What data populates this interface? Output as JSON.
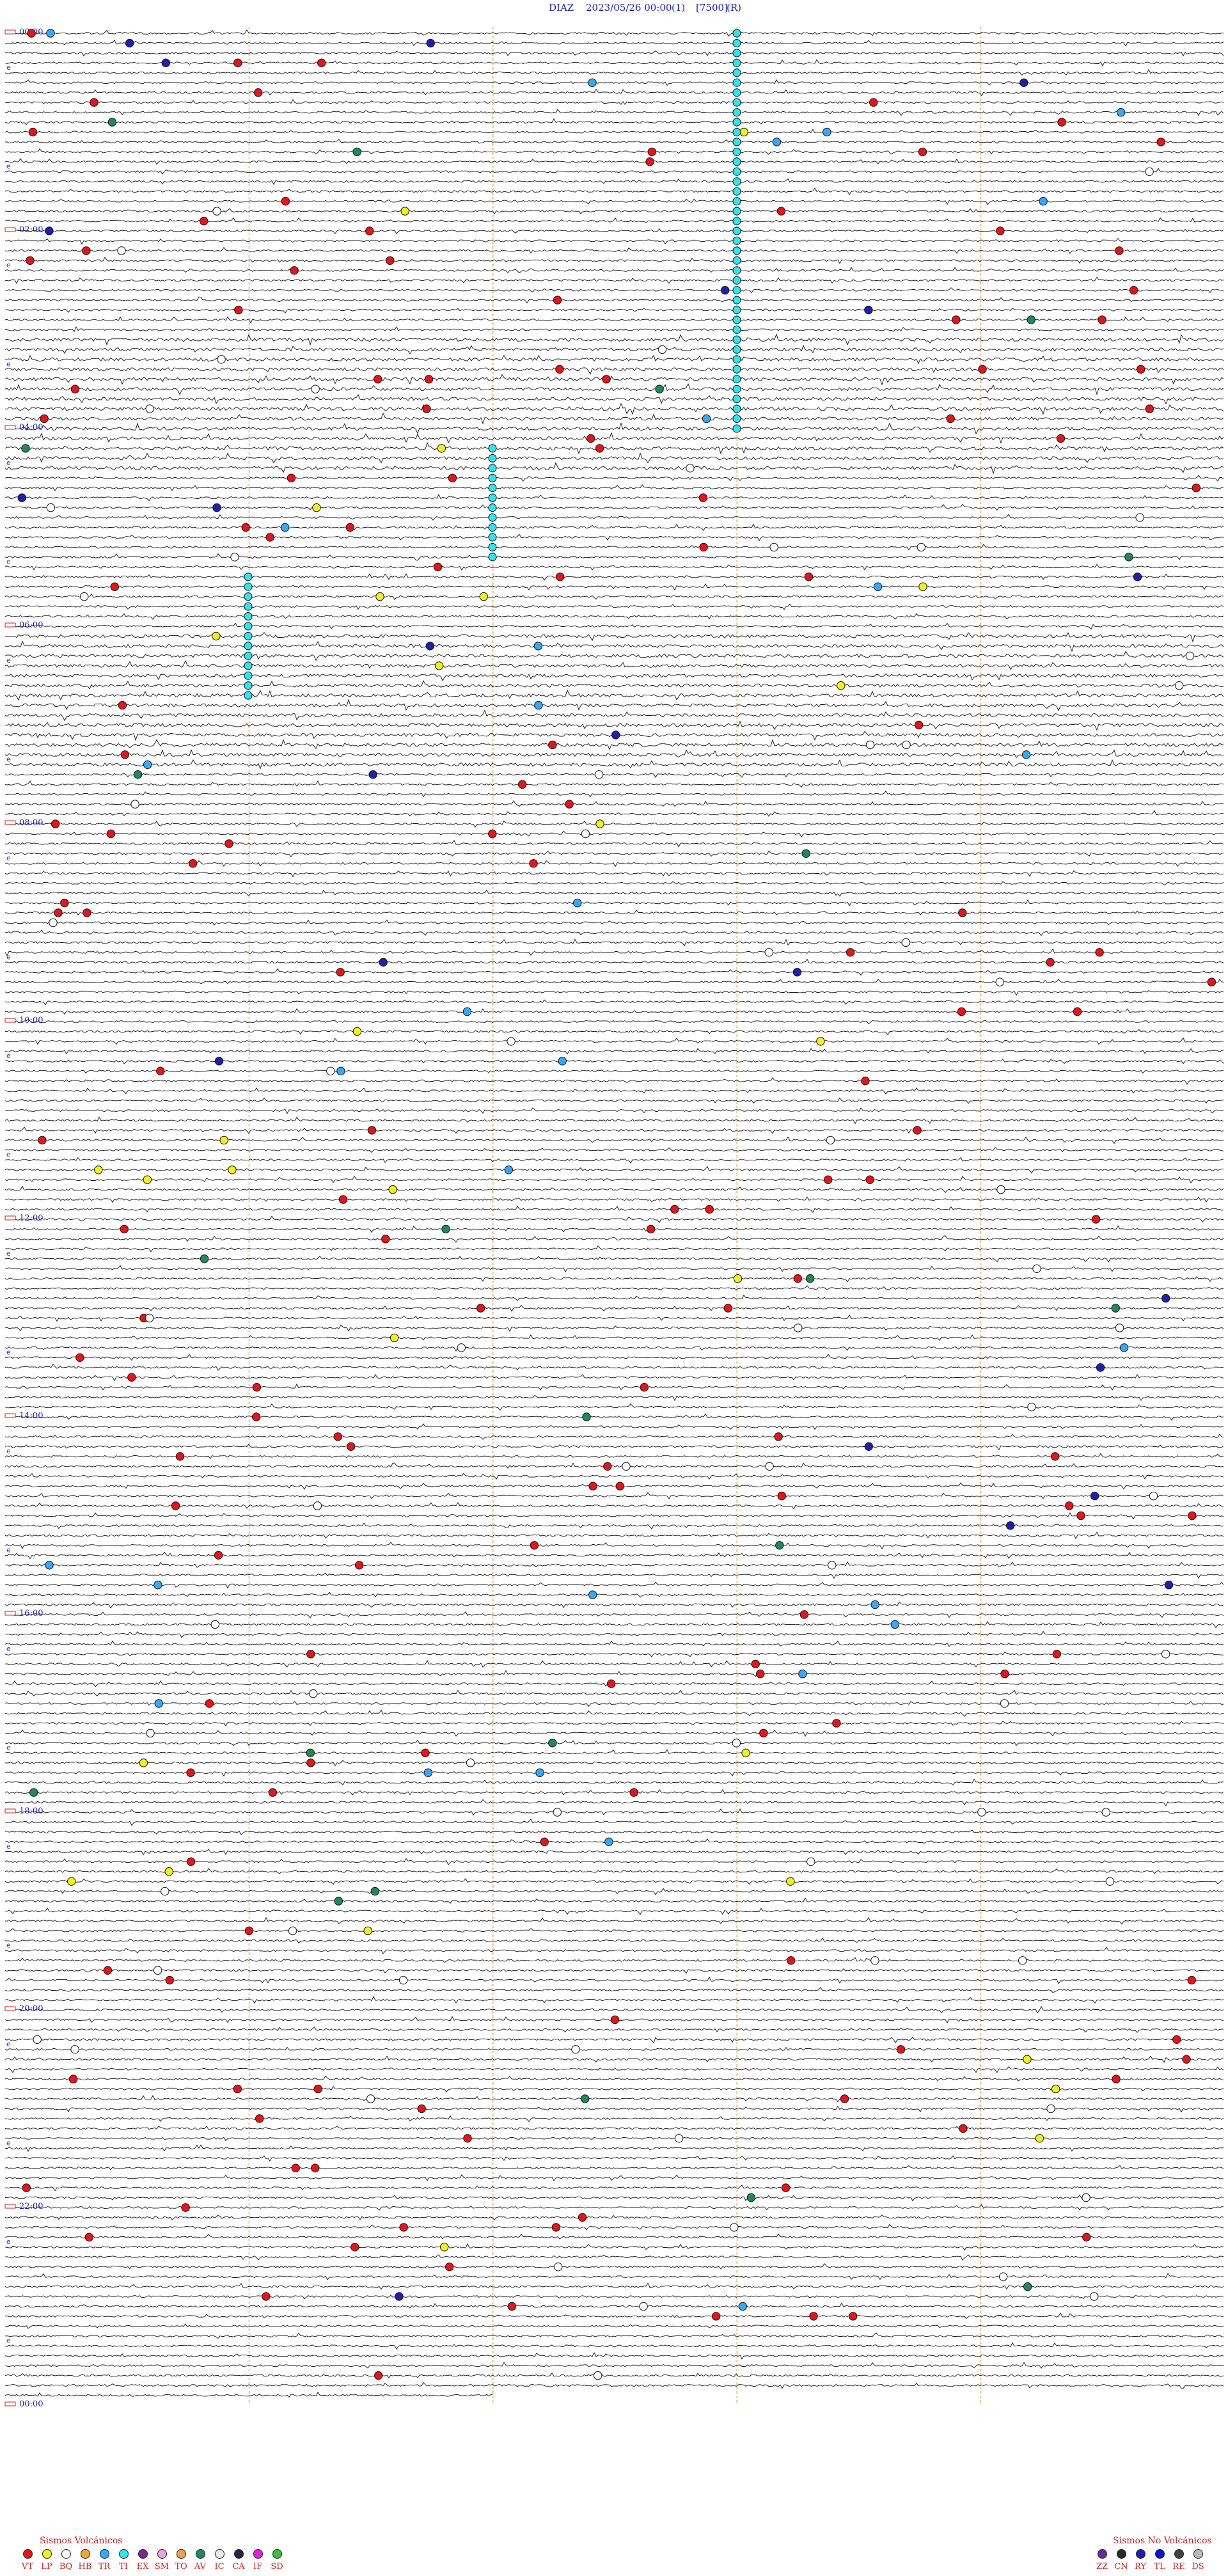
{
  "header": {
    "station": "DIAZ",
    "datetime": "2023/05/26 00:00",
    "component": "(1)",
    "gain": "[7500]",
    "flag": "(R)"
  },
  "chart_data": {
    "type": "helicorder",
    "time_labels": [
      "00:00",
      "02:00",
      "04:00",
      "06:00",
      "08:00",
      "10:00",
      "12:00",
      "14:00",
      "16:00",
      "18:00",
      "20:00",
      "22:00",
      "00:00"
    ],
    "line_count": 240,
    "minutes_per_line": 6,
    "blue_markers": [
      24,
      84,
      144,
      204,
      264,
      324,
      384,
      444,
      504,
      564,
      624,
      684,
      744,
      804,
      864,
      924,
      984,
      1044,
      1104,
      1164,
      1224,
      1284,
      1344,
      1404
    ],
    "event_colors": {
      "VT": "#e8141a",
      "LP": "#f2f21a",
      "BQ": "#ffffff",
      "HB": "#f7a733",
      "TR": "#34aaff",
      "TI": "#2ee6f0",
      "EX": "#7a2a8a",
      "SM": "#f2a0d8",
      "TO": "#f0a24b",
      "AV": "#208a5a",
      "IC": "#e8e8e8",
      "CA": "#2a2240",
      "IF": "#e820e0",
      "SD": "#36c23a",
      "ZZ": "#6a2a9a",
      "CN": "#2a2a2a",
      "RY": "#2020b0",
      "TL": "#1010d0",
      "RE": "#444444",
      "DS": "#bbbbbb"
    }
  },
  "legend": {
    "volcanic_title": "Sismos Volcánicos",
    "volcanic": [
      {
        "code": "VT",
        "color": "#e8141a"
      },
      {
        "code": "LP",
        "color": "#f2f21a"
      },
      {
        "code": "BQ",
        "color": "#ffffff"
      },
      {
        "code": "HB",
        "color": "#f7a733"
      },
      {
        "code": "TR",
        "color": "#34aaff"
      },
      {
        "code": "TI",
        "color": "#2ee6f0"
      },
      {
        "code": "EX",
        "color": "#7a2a8a"
      },
      {
        "code": "SM",
        "color": "#f2a0d8"
      },
      {
        "code": "TO",
        "color": "#f0a24b"
      },
      {
        "code": "AV",
        "color": "#208a5a"
      },
      {
        "code": "IC",
        "color": "#e8e8e8"
      },
      {
        "code": "CA",
        "color": "#2a2240"
      },
      {
        "code": "IF",
        "color": "#e820e0"
      },
      {
        "code": "SD",
        "color": "#36c23a"
      }
    ],
    "nonvolcanic_title": "Sismos No Volcánicos",
    "nonvolcanic": [
      {
        "code": "ZZ",
        "color": "#6a2a9a"
      },
      {
        "code": "CN",
        "color": "#2a2a2a"
      },
      {
        "code": "RY",
        "color": "#2020b0"
      },
      {
        "code": "TL",
        "color": "#1010d0"
      },
      {
        "code": "RE",
        "color": "#444444"
      },
      {
        "code": "DS",
        "color": "#bbbbbb"
      }
    ]
  }
}
